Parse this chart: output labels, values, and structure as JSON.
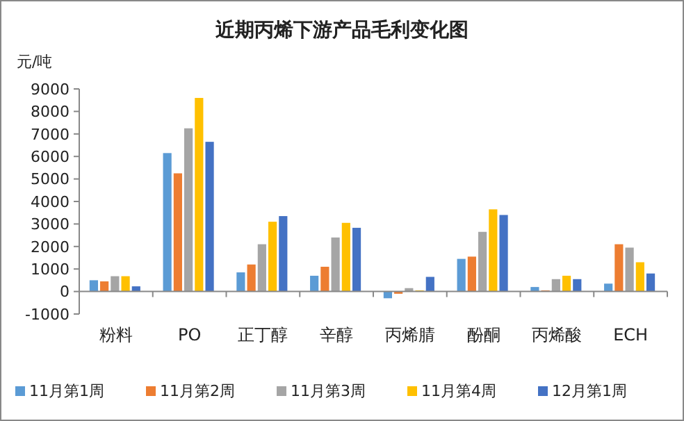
{
  "chart_data": {
    "type": "bar",
    "title": "近期丙烯下游产品毛利变化图",
    "ylabel": "元/吨",
    "categories": [
      "粉料",
      "PO",
      "正丁醇",
      "辛醇",
      "丙烯腈",
      "酚酮",
      "丙烯酸",
      "ECH"
    ],
    "series": [
      {
        "name": "11月第1周",
        "color": "#5b9bd5",
        "values": [
          500,
          6150,
          850,
          700,
          -300,
          1450,
          200,
          350
        ]
      },
      {
        "name": "11月第2周",
        "color": "#ed7d31",
        "values": [
          450,
          5250,
          1200,
          1100,
          -100,
          1550,
          50,
          2100
        ]
      },
      {
        "name": "11月第3周",
        "color": "#a5a5a5",
        "values": [
          680,
          7250,
          2100,
          2400,
          150,
          2650,
          550,
          1950
        ]
      },
      {
        "name": "11月第4周",
        "color": "#ffc000",
        "values": [
          680,
          8600,
          3100,
          3050,
          50,
          3650,
          700,
          1300
        ]
      },
      {
        "name": "12月第1周",
        "color": "#4472c4",
        "values": [
          230,
          6650,
          3350,
          2830,
          650,
          3400,
          550,
          800
        ]
      }
    ],
    "ylim": [
      -1000,
      9000
    ],
    "yticks": [
      -1000,
      0,
      1000,
      2000,
      3000,
      4000,
      5000,
      6000,
      7000,
      8000,
      9000
    ],
    "grid": false,
    "legend": "bottom"
  }
}
